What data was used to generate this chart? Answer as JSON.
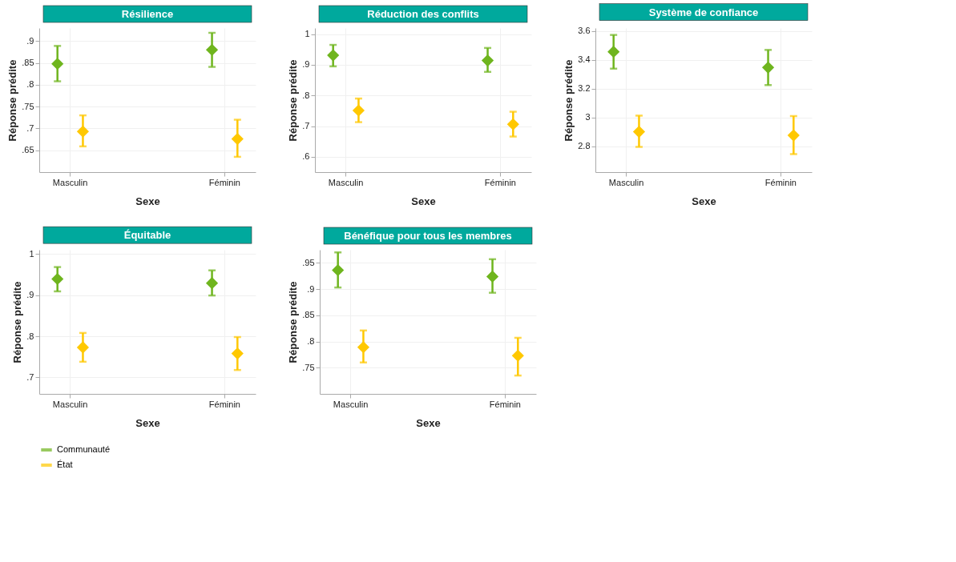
{
  "chart_data": [
    {
      "type": "scatter",
      "title": "Résilience",
      "xlabel": "Sexe",
      "ylabel": "Réponse prédite",
      "categories": [
        "Masculin",
        "Féminin"
      ],
      "ylim": [
        0.6,
        0.93
      ],
      "yticks": [
        {
          "value": 0.65,
          "label": ".65"
        },
        {
          "value": 0.7,
          "label": ".7"
        },
        {
          "value": 0.75,
          "label": ".75"
        },
        {
          "value": 0.8,
          "label": ".8"
        },
        {
          "value": 0.85,
          "label": ".85"
        },
        {
          "value": 0.9,
          "label": ".9"
        }
      ],
      "grid": true,
      "legend": "bottom",
      "marker": "diamond",
      "series": [
        {
          "name": "Communauté",
          "color": "#6fb51e",
          "values": [
            0.848,
            0.88
          ],
          "errors": [
            [
              0.808,
              0.889
            ],
            [
              0.841,
              0.919
            ]
          ]
        },
        {
          "name": "État",
          "color": "#ffc800",
          "values": [
            0.693,
            0.676
          ],
          "errors": [
            [
              0.659,
              0.73
            ],
            [
              0.635,
              0.72
            ]
          ]
        }
      ]
    },
    {
      "type": "scatter",
      "title": "Réduction des conflits",
      "xlabel": "Sexe",
      "ylabel": "Réponse prédite",
      "categories": [
        "Masculin",
        "Féminin"
      ],
      "ylim": [
        0.55,
        1.02
      ],
      "yticks": [
        {
          "value": 0.6,
          "label": ".6"
        },
        {
          "value": 0.7,
          "label": ".7"
        },
        {
          "value": 0.8,
          "label": ".8"
        },
        {
          "value": 0.9,
          "label": ".9"
        },
        1
      ],
      "grid": true,
      "legend": "bottom",
      "marker": "diamond",
      "series": [
        {
          "name": "Communauté",
          "color": "#6fb51e",
          "values": [
            0.931,
            0.914
          ],
          "errors": [
            [
              0.895,
              0.965
            ],
            [
              0.877,
              0.955
            ]
          ]
        },
        {
          "name": "État",
          "color": "#ffc800",
          "values": [
            0.751,
            0.706
          ],
          "errors": [
            [
              0.713,
              0.79
            ],
            [
              0.666,
              0.747
            ]
          ]
        }
      ]
    },
    {
      "type": "scatter",
      "title": "Système de confiance",
      "xlabel": "Sexe",
      "ylabel": "Réponse prédite",
      "categories": [
        "Masculin",
        "Féminin"
      ],
      "ylim": [
        2.62,
        3.62
      ],
      "yticks": [
        2.8,
        3,
        3.2,
        3.4,
        3.6
      ],
      "grid": true,
      "legend": "bottom",
      "marker": "diamond",
      "series": [
        {
          "name": "Communauté",
          "color": "#6fb51e",
          "values": [
            3.455,
            3.346
          ],
          "errors": [
            [
              3.338,
              3.572
            ],
            [
              3.224,
              3.468
            ]
          ]
        },
        {
          "name": "État",
          "color": "#ffc800",
          "values": [
            2.9,
            2.875
          ],
          "errors": [
            [
              2.795,
              3.012
            ],
            [
              2.745,
              3.009
            ]
          ]
        }
      ]
    },
    {
      "type": "scatter",
      "title": "Équitable",
      "xlabel": "Sexe",
      "ylabel": "Réponse prédite",
      "categories": [
        "Masculin",
        "Féminin"
      ],
      "ylim": [
        0.66,
        1.01
      ],
      "yticks": [
        {
          "value": 0.7,
          "label": ".7"
        },
        {
          "value": 0.8,
          "label": ".8"
        },
        {
          "value": 0.9,
          "label": ".9"
        },
        1
      ],
      "grid": true,
      "legend": "bottom",
      "marker": "diamond",
      "series": [
        {
          "name": "Communauté",
          "color": "#6fb51e",
          "values": [
            0.939,
            0.929
          ],
          "errors": [
            [
              0.909,
              0.968
            ],
            [
              0.899,
              0.96
            ]
          ]
        },
        {
          "name": "État",
          "color": "#ffc800",
          "values": [
            0.773,
            0.758
          ],
          "errors": [
            [
              0.738,
              0.808
            ],
            [
              0.718,
              0.798
            ]
          ]
        }
      ]
    },
    {
      "type": "scatter",
      "title": "Bénéfique pour tous les membres",
      "xlabel": "Sexe",
      "ylabel": "Réponse prédite",
      "categories": [
        "Masculin",
        "Féminin"
      ],
      "ylim": [
        0.7,
        0.975
      ],
      "yticks": [
        {
          "value": 0.75,
          "label": ".75"
        },
        {
          "value": 0.8,
          "label": ".8"
        },
        {
          "value": 0.85,
          "label": ".85"
        },
        {
          "value": 0.9,
          "label": ".9"
        },
        {
          "value": 0.95,
          "label": ".95"
        }
      ],
      "grid": true,
      "legend": "bottom",
      "marker": "diamond",
      "series": [
        {
          "name": "Communauté",
          "color": "#6fb51e",
          "values": [
            0.936,
            0.924
          ],
          "errors": [
            [
              0.903,
              0.97
            ],
            [
              0.893,
              0.957
            ]
          ]
        },
        {
          "name": "État",
          "color": "#ffc800",
          "values": [
            0.789,
            0.773
          ],
          "errors": [
            [
              0.76,
              0.821
            ],
            [
              0.735,
              0.807
            ]
          ]
        }
      ]
    }
  ]
}
